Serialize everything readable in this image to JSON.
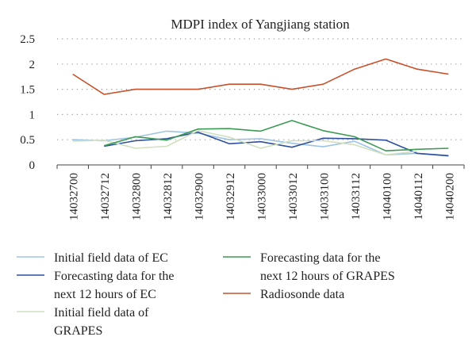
{
  "chart_data": {
    "type": "line",
    "title": "MDPI index of Yangjiang station",
    "xlabel": "",
    "ylabel": "",
    "ylim": [
      0,
      2.5
    ],
    "yticks": [
      "0",
      "0.5",
      "1",
      "1.5",
      "2",
      "2.5"
    ],
    "grid": "dotted horizontal",
    "legend_position": "bottom",
    "categories": [
      "14032700",
      "14032712",
      "14032800",
      "14032812",
      "14032900",
      "14032912",
      "14033000",
      "14033012",
      "14033100",
      "14033112",
      "14040100",
      "14040112",
      "14040200"
    ],
    "series": [
      {
        "name": "Initial field data of EC",
        "color": "#9dc3e6",
        "values": [
          0.5,
          0.48,
          0.55,
          0.67,
          0.63,
          0.5,
          0.52,
          0.43,
          0.36,
          0.47,
          0.2,
          0.23,
          0.19
        ]
      },
      {
        "name": "Forecasting data for the next 12 hours of EC",
        "color": "#2f4f9f",
        "values": [
          null,
          0.37,
          0.48,
          0.52,
          0.65,
          0.42,
          0.46,
          0.35,
          0.53,
          0.52,
          0.49,
          0.23,
          0.18
        ]
      },
      {
        "name": "Initial field data of GRAPES",
        "color": "#cfe0bf",
        "values": [
          0.47,
          0.49,
          0.33,
          0.37,
          0.68,
          0.55,
          0.33,
          0.48,
          0.48,
          0.4,
          0.2,
          0.27,
          null
        ]
      },
      {
        "name": "Forecasting data for the next 12 hours of GRAPES",
        "color": "#3d9a54",
        "values": [
          null,
          0.38,
          0.56,
          0.49,
          0.71,
          0.72,
          0.67,
          0.88,
          0.68,
          0.56,
          0.28,
          0.31,
          0.33
        ]
      },
      {
        "name": "Radiosonde data",
        "color": "#c8502a",
        "values": [
          1.8,
          1.4,
          1.5,
          1.5,
          1.5,
          1.6,
          1.6,
          1.5,
          1.6,
          1.9,
          2.1,
          1.9,
          1.8
        ]
      }
    ],
    "legend": {
      "left": [
        {
          "series": 0,
          "lines": [
            "Initial field data of EC"
          ]
        },
        {
          "series": 1,
          "lines": [
            "Forecasting data for the",
            "next 12 hours of EC"
          ]
        },
        {
          "series": 2,
          "lines": [
            "Initial field data of",
            "GRAPES"
          ]
        }
      ],
      "right": [
        {
          "series": 3,
          "lines": [
            "Forecasting data for the",
            "next 12 hours of GRAPES"
          ]
        },
        {
          "series": 4,
          "lines": [
            "Radiosonde data"
          ]
        }
      ]
    }
  }
}
